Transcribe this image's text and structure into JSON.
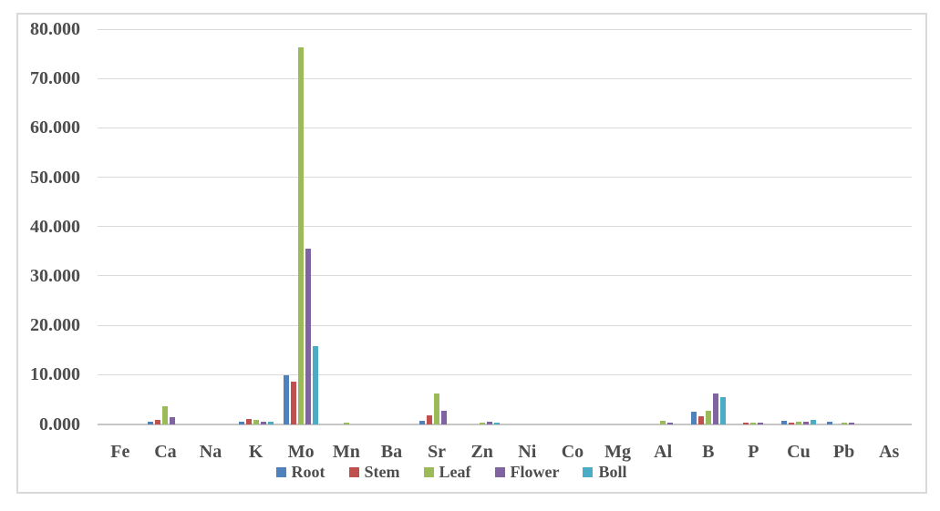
{
  "chart_data": {
    "type": "bar",
    "title": "",
    "xlabel": "",
    "ylabel": "",
    "categories": [
      "Fe",
      "Ca",
      "Na",
      "K",
      "Mo",
      "Mn",
      "Ba",
      "Sr",
      "Zn",
      "Ni",
      "Co",
      "Mg",
      "Al",
      "B",
      "P",
      "Cu",
      "Pb",
      "As"
    ],
    "series": [
      {
        "name": "Root",
        "color": "#4F81BD",
        "values": [
          0,
          0.5,
          0,
          0.5,
          9.9,
          0,
          0,
          0.6,
          0,
          0,
          0,
          0,
          0,
          2.5,
          0,
          0.7,
          0.5,
          0
        ]
      },
      {
        "name": "Stem",
        "color": "#C0504D",
        "values": [
          0,
          0.8,
          0,
          1.1,
          8.5,
          0,
          0,
          1.7,
          0,
          0,
          0,
          0,
          0,
          1.6,
          0.3,
          0.3,
          0,
          0
        ]
      },
      {
        "name": "Leaf",
        "color": "#9BBB59",
        "values": [
          0,
          3.6,
          0,
          0.9,
          76.3,
          0.3,
          0,
          6.2,
          0.35,
          0,
          0,
          0,
          0.6,
          2.6,
          0.3,
          0.45,
          0.25,
          0
        ]
      },
      {
        "name": "Flower",
        "color": "#8064A2",
        "values": [
          0,
          1.4,
          0,
          0.5,
          35.6,
          0,
          0,
          2.7,
          0.5,
          0,
          0,
          0,
          0.25,
          6.2,
          0.3,
          0.5,
          0.3,
          0
        ]
      },
      {
        "name": "Boll",
        "color": "#4BACC6",
        "values": [
          0,
          0,
          0,
          0.4,
          15.7,
          0,
          0,
          0,
          0.3,
          0,
          0,
          0,
          0,
          5.5,
          0,
          0.8,
          0,
          0
        ]
      }
    ],
    "ylim": [
      0,
      80
    ],
    "ytick_labels": [
      "0.000",
      "10.000",
      "20.000",
      "30.000",
      "40.000",
      "50.000",
      "60.000",
      "70.000",
      "80.000"
    ],
    "grid": true,
    "legend_position": "bottom"
  },
  "colors": {
    "background": "#ffffff",
    "frame_border": "#d9d9d9",
    "gridline": "#d9d9d9",
    "zero_line": "#c6c6c6",
    "text": "#4d4d4d"
  }
}
